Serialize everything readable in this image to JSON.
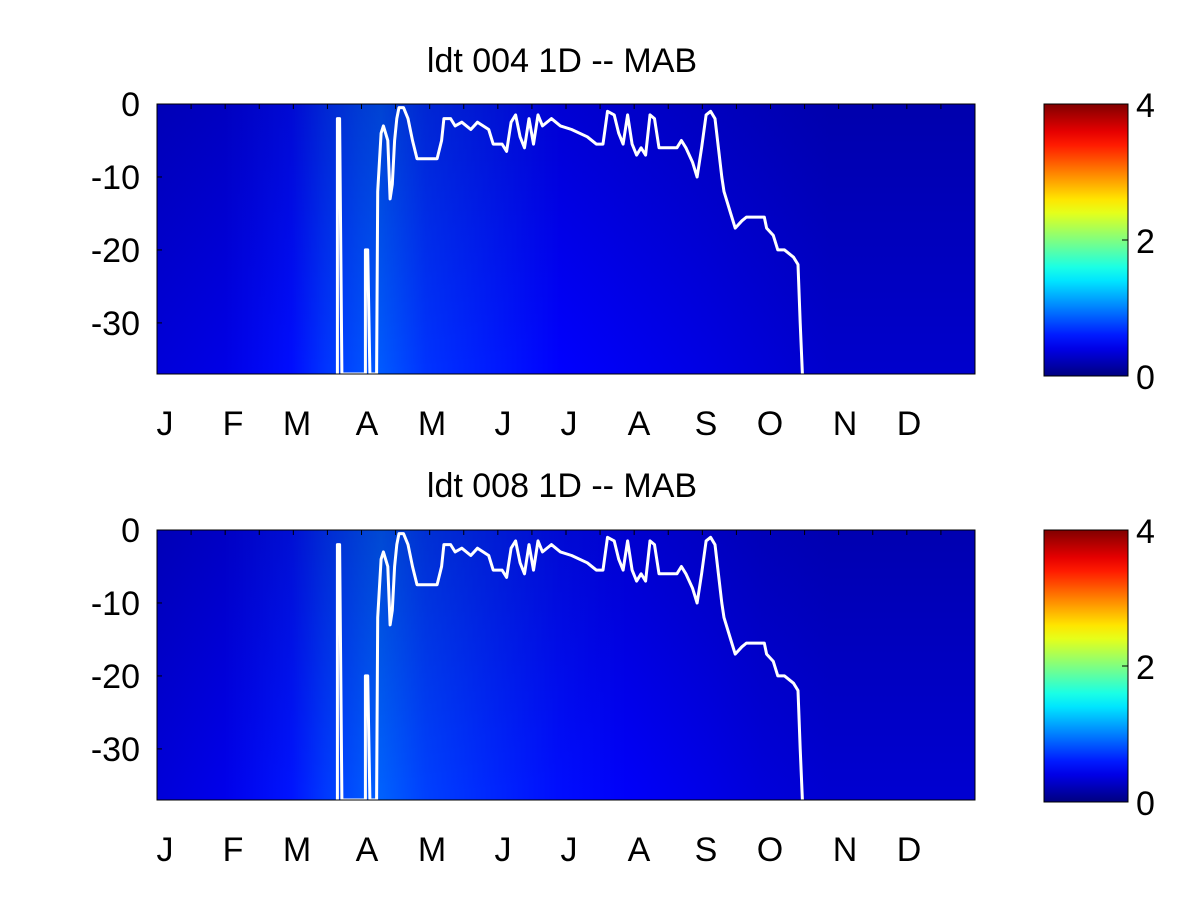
{
  "chart_data": [
    {
      "type": "heatmap",
      "title": "ldt  004 1D   -- MAB",
      "xlabel": "",
      "ylabel": "",
      "x_ticklabels": [
        "J",
        "F",
        "M",
        "A",
        "M",
        "J",
        "J",
        "A",
        "S",
        "O",
        "N",
        "D"
      ],
      "y_ticks": [
        0,
        -10,
        -20,
        -30
      ],
      "ylim": [
        -37,
        0
      ],
      "xlim": [
        0,
        365
      ],
      "colorbar": {
        "colormap": "jet",
        "ticks": [
          0,
          2,
          4
        ],
        "range": [
          0,
          4
        ]
      },
      "day_profile": [
        {
          "day": 0,
          "value": 0.35
        },
        {
          "day": 30,
          "value": 0.4
        },
        {
          "day": 60,
          "value": 0.55
        },
        {
          "day": 75,
          "value": 0.7
        },
        {
          "day": 90,
          "value": 0.8
        },
        {
          "day": 100,
          "value": 0.85
        },
        {
          "day": 120,
          "value": 0.7
        },
        {
          "day": 150,
          "value": 0.6
        },
        {
          "day": 180,
          "value": 0.5
        },
        {
          "day": 210,
          "value": 0.45
        },
        {
          "day": 240,
          "value": 0.4
        },
        {
          "day": 270,
          "value": 0.35
        },
        {
          "day": 300,
          "value": 0.3
        },
        {
          "day": 365,
          "value": 0.3
        }
      ],
      "line": {
        "color": "#ffffff",
        "points": [
          [
            80.5,
            -37
          ],
          [
            80.5,
            -2
          ],
          [
            81.5,
            -2
          ],
          [
            82.5,
            -37
          ],
          [
            93,
            -37
          ],
          [
            93,
            -20
          ],
          [
            94,
            -20
          ],
          [
            95,
            -37
          ],
          [
            98,
            -37
          ],
          [
            98.5,
            -12
          ],
          [
            100,
            -4
          ],
          [
            101,
            -3
          ],
          [
            103,
            -5
          ],
          [
            104,
            -13
          ],
          [
            105,
            -11
          ],
          [
            106,
            -5
          ],
          [
            107,
            -2
          ],
          [
            108,
            -0.5
          ],
          [
            110,
            -0.5
          ],
          [
            112,
            -2
          ],
          [
            114,
            -5
          ],
          [
            116,
            -7.5
          ],
          [
            125,
            -7.5
          ],
          [
            127,
            -5
          ],
          [
            128,
            -2
          ],
          [
            131,
            -2
          ],
          [
            133,
            -3
          ],
          [
            136,
            -2.5
          ],
          [
            140,
            -3.5
          ],
          [
            143,
            -2.5
          ],
          [
            148,
            -3.5
          ],
          [
            150,
            -5.5
          ],
          [
            154,
            -5.5
          ],
          [
            156,
            -6.5
          ],
          [
            158,
            -2.5
          ],
          [
            160,
            -1.5
          ],
          [
            162,
            -4.5
          ],
          [
            164,
            -6
          ],
          [
            166,
            -2
          ],
          [
            168,
            -5.5
          ],
          [
            170,
            -1.5
          ],
          [
            172,
            -3
          ],
          [
            176,
            -2
          ],
          [
            180,
            -3
          ],
          [
            185,
            -3.5
          ],
          [
            192,
            -4.5
          ],
          [
            196,
            -5.5
          ],
          [
            199,
            -5.5
          ],
          [
            201,
            -1
          ],
          [
            204,
            -1.5
          ],
          [
            206,
            -4
          ],
          [
            208,
            -5.5
          ],
          [
            210,
            -1.5
          ],
          [
            212,
            -5.5
          ],
          [
            214,
            -7
          ],
          [
            216,
            -6
          ],
          [
            218,
            -7
          ],
          [
            220,
            -1.5
          ],
          [
            222,
            -2
          ],
          [
            224,
            -6
          ],
          [
            232,
            -6
          ],
          [
            234,
            -5
          ],
          [
            236,
            -6
          ],
          [
            239,
            -8
          ],
          [
            241,
            -10
          ],
          [
            243,
            -6
          ],
          [
            245,
            -1.5
          ],
          [
            247,
            -1
          ],
          [
            249,
            -2
          ],
          [
            252,
            -10
          ],
          [
            253,
            -12
          ],
          [
            256,
            -15
          ],
          [
            258,
            -17
          ],
          [
            261,
            -16
          ],
          [
            263,
            -15.5
          ],
          [
            271,
            -15.5
          ],
          [
            272,
            -17
          ],
          [
            275,
            -18
          ],
          [
            277,
            -20
          ],
          [
            280,
            -20
          ],
          [
            284,
            -21
          ],
          [
            286,
            -22
          ],
          [
            287,
            -30
          ],
          [
            288,
            -37
          ]
        ]
      }
    },
    {
      "type": "heatmap",
      "title": "ldt  008 1D   -- MAB",
      "xlabel": "",
      "ylabel": "",
      "x_ticklabels": [
        "J",
        "F",
        "M",
        "A",
        "M",
        "J",
        "J",
        "A",
        "S",
        "O",
        "N",
        "D"
      ],
      "y_ticks": [
        0,
        -10,
        -20,
        -30
      ],
      "ylim": [
        -37,
        0
      ],
      "xlim": [
        0,
        365
      ],
      "colorbar": {
        "colormap": "jet",
        "ticks": [
          0,
          2,
          4
        ],
        "range": [
          0,
          4
        ]
      },
      "day_profile": [
        {
          "day": 0,
          "value": 0.35
        },
        {
          "day": 30,
          "value": 0.42
        },
        {
          "day": 60,
          "value": 0.58
        },
        {
          "day": 75,
          "value": 0.72
        },
        {
          "day": 90,
          "value": 0.82
        },
        {
          "day": 100,
          "value": 0.88
        },
        {
          "day": 120,
          "value": 0.75
        },
        {
          "day": 150,
          "value": 0.65
        },
        {
          "day": 180,
          "value": 0.55
        },
        {
          "day": 210,
          "value": 0.48
        },
        {
          "day": 240,
          "value": 0.42
        },
        {
          "day": 270,
          "value": 0.36
        },
        {
          "day": 300,
          "value": 0.32
        },
        {
          "day": 365,
          "value": 0.32
        }
      ],
      "line": {
        "color": "#ffffff",
        "points": [
          [
            80.5,
            -37
          ],
          [
            80.5,
            -2
          ],
          [
            81.5,
            -2
          ],
          [
            82.5,
            -37
          ],
          [
            93,
            -37
          ],
          [
            93,
            -20
          ],
          [
            94,
            -20
          ],
          [
            95,
            -37
          ],
          [
            98,
            -37
          ],
          [
            98.5,
            -12
          ],
          [
            100,
            -4
          ],
          [
            101,
            -3
          ],
          [
            103,
            -5
          ],
          [
            104,
            -13
          ],
          [
            105,
            -11
          ],
          [
            106,
            -5
          ],
          [
            107,
            -2
          ],
          [
            108,
            -0.5
          ],
          [
            110,
            -0.5
          ],
          [
            112,
            -2
          ],
          [
            114,
            -5
          ],
          [
            116,
            -7.5
          ],
          [
            125,
            -7.5
          ],
          [
            127,
            -5
          ],
          [
            128,
            -2
          ],
          [
            131,
            -2
          ],
          [
            133,
            -3
          ],
          [
            136,
            -2.5
          ],
          [
            140,
            -3.5
          ],
          [
            143,
            -2.5
          ],
          [
            148,
            -3.5
          ],
          [
            150,
            -5.5
          ],
          [
            154,
            -5.5
          ],
          [
            156,
            -6.5
          ],
          [
            158,
            -2.5
          ],
          [
            160,
            -1.5
          ],
          [
            162,
            -4.5
          ],
          [
            164,
            -6
          ],
          [
            166,
            -2
          ],
          [
            168,
            -5.5
          ],
          [
            170,
            -1.5
          ],
          [
            172,
            -3
          ],
          [
            176,
            -2
          ],
          [
            180,
            -3
          ],
          [
            185,
            -3.5
          ],
          [
            192,
            -4.5
          ],
          [
            196,
            -5.5
          ],
          [
            199,
            -5.5
          ],
          [
            201,
            -1
          ],
          [
            204,
            -1.5
          ],
          [
            206,
            -4
          ],
          [
            208,
            -5.5
          ],
          [
            210,
            -1.5
          ],
          [
            212,
            -5.5
          ],
          [
            214,
            -7
          ],
          [
            216,
            -6
          ],
          [
            218,
            -7
          ],
          [
            220,
            -1.5
          ],
          [
            222,
            -2
          ],
          [
            224,
            -6
          ],
          [
            232,
            -6
          ],
          [
            234,
            -5
          ],
          [
            236,
            -6
          ],
          [
            239,
            -8
          ],
          [
            241,
            -10
          ],
          [
            243,
            -6
          ],
          [
            245,
            -1.5
          ],
          [
            247,
            -1
          ],
          [
            249,
            -2
          ],
          [
            252,
            -10
          ],
          [
            253,
            -12
          ],
          [
            256,
            -15
          ],
          [
            258,
            -17
          ],
          [
            261,
            -16
          ],
          [
            263,
            -15.5
          ],
          [
            271,
            -15.5
          ],
          [
            272,
            -17
          ],
          [
            275,
            -18
          ],
          [
            277,
            -20
          ],
          [
            280,
            -20
          ],
          [
            284,
            -21
          ],
          [
            286,
            -22
          ],
          [
            287,
            -30
          ],
          [
            288,
            -37
          ]
        ]
      }
    }
  ]
}
